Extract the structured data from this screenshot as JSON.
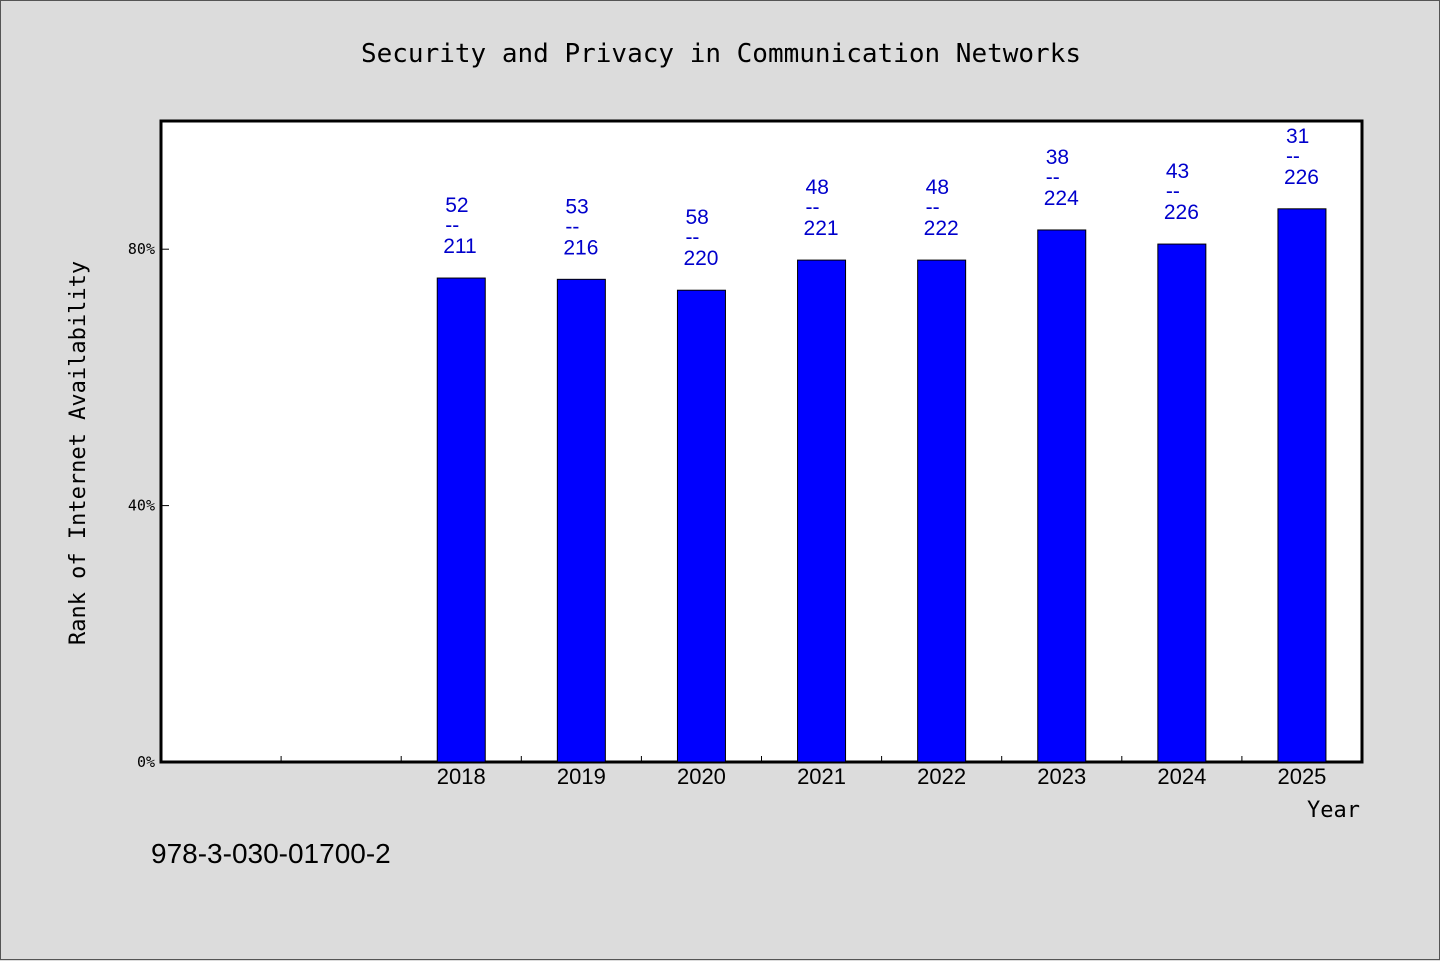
{
  "chart_data": {
    "type": "bar",
    "title": "Security and Privacy in Communication Networks",
    "xlabel": "Year",
    "ylabel": "Rank of Internet Availability",
    "categories": [
      "2018",
      "2019",
      "2020",
      "2021",
      "2022",
      "2023",
      "2024",
      "2025"
    ],
    "series": [
      {
        "values": [
          75.5,
          75.3,
          73.6,
          78.3,
          78.3,
          83.0,
          80.8,
          86.3
        ],
        "color": "#0000ff"
      }
    ],
    "data_labels": [
      {
        "top": "52",
        "sep": "--",
        "bottom": "211"
      },
      {
        "top": "53",
        "sep": "--",
        "bottom": "216"
      },
      {
        "top": "58",
        "sep": "--",
        "bottom": "220"
      },
      {
        "top": "48",
        "sep": "--",
        "bottom": "221"
      },
      {
        "top": "48",
        "sep": "--",
        "bottom": "222"
      },
      {
        "top": "38",
        "sep": "--",
        "bottom": "224"
      },
      {
        "top": "43",
        "sep": "--",
        "bottom": "226"
      },
      {
        "top": "31",
        "sep": "--",
        "bottom": "226"
      }
    ],
    "ylim": [
      0,
      100
    ],
    "yticks": [
      0,
      40,
      80
    ],
    "ytick_labels": [
      "0%",
      "40%",
      "80%"
    ],
    "grid": false,
    "colors": {
      "bar": "#0000ff",
      "data_label": "#0000cc",
      "plot_bg": "#ffffff",
      "page_bg": "#dcdcdc"
    }
  },
  "footer": "978-3-030-01700-2"
}
